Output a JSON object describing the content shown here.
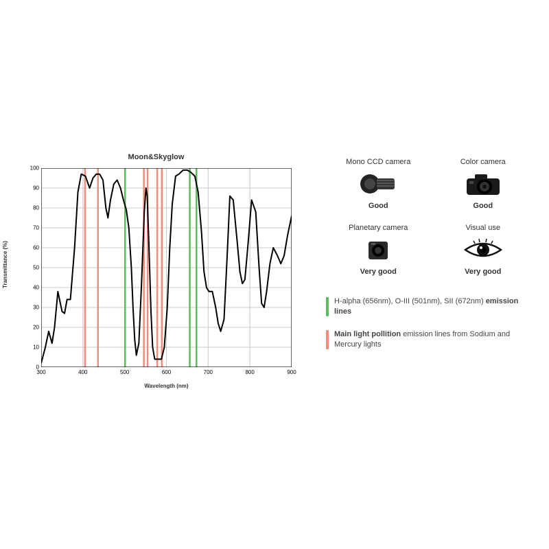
{
  "chart": {
    "type": "line",
    "title": "Moon&Skyglow",
    "xlabel": "Wavelength (nm)",
    "ylabel": "Transmittance (%)",
    "xlim": [
      300,
      900
    ],
    "ylim": [
      0,
      100
    ],
    "xticks": [
      300,
      400,
      500,
      600,
      700,
      800,
      900
    ],
    "yticks": [
      0,
      10,
      20,
      30,
      40,
      50,
      60,
      70,
      80,
      90,
      100
    ],
    "grid_color": "#c8c8c8",
    "axis_color": "#000000",
    "background_color": "#ffffff",
    "line_color": "#000000",
    "line_width": 2,
    "font_size_tick": 8,
    "font_size_label": 8,
    "font_size_title": 11,
    "green_line_color": "#5bbd5b",
    "red_line_color": "#f28d7a",
    "vline_width": 2.5,
    "green_lines_nm": [
      501,
      656,
      672
    ],
    "red_lines_nm": [
      405,
      436,
      546,
      555,
      578,
      589
    ],
    "curve": [
      [
        300,
        2
      ],
      [
        310,
        10
      ],
      [
        318,
        18
      ],
      [
        326,
        12
      ],
      [
        332,
        20
      ],
      [
        340,
        38
      ],
      [
        350,
        28
      ],
      [
        356,
        27
      ],
      [
        362,
        34
      ],
      [
        370,
        34
      ],
      [
        380,
        60
      ],
      [
        388,
        88
      ],
      [
        396,
        97
      ],
      [
        406,
        96
      ],
      [
        416,
        90
      ],
      [
        424,
        95
      ],
      [
        432,
        97
      ],
      [
        440,
        97
      ],
      [
        448,
        94
      ],
      [
        455,
        80
      ],
      [
        460,
        75
      ],
      [
        466,
        84
      ],
      [
        474,
        92
      ],
      [
        482,
        94
      ],
      [
        490,
        90
      ],
      [
        497,
        84
      ],
      [
        504,
        79
      ],
      [
        510,
        70
      ],
      [
        516,
        50
      ],
      [
        520,
        30
      ],
      [
        524,
        14
      ],
      [
        528,
        6
      ],
      [
        534,
        12
      ],
      [
        540,
        40
      ],
      [
        547,
        78
      ],
      [
        551,
        90
      ],
      [
        554,
        86
      ],
      [
        558,
        62
      ],
      [
        563,
        28
      ],
      [
        567,
        10
      ],
      [
        572,
        4
      ],
      [
        580,
        4
      ],
      [
        588,
        4
      ],
      [
        595,
        10
      ],
      [
        602,
        30
      ],
      [
        608,
        60
      ],
      [
        614,
        82
      ],
      [
        622,
        96
      ],
      [
        630,
        97
      ],
      [
        640,
        99
      ],
      [
        650,
        99
      ],
      [
        658,
        98
      ],
      [
        668,
        96
      ],
      [
        676,
        88
      ],
      [
        684,
        68
      ],
      [
        690,
        48
      ],
      [
        696,
        40
      ],
      [
        702,
        38
      ],
      [
        710,
        38
      ],
      [
        718,
        30
      ],
      [
        724,
        22
      ],
      [
        730,
        18
      ],
      [
        738,
        24
      ],
      [
        746,
        58
      ],
      [
        752,
        86
      ],
      [
        760,
        84
      ],
      [
        770,
        62
      ],
      [
        776,
        48
      ],
      [
        782,
        42
      ],
      [
        788,
        44
      ],
      [
        796,
        63
      ],
      [
        804,
        84
      ],
      [
        814,
        78
      ],
      [
        822,
        50
      ],
      [
        828,
        32
      ],
      [
        834,
        30
      ],
      [
        840,
        38
      ],
      [
        848,
        52
      ],
      [
        856,
        60
      ],
      [
        866,
        56
      ],
      [
        874,
        52
      ],
      [
        882,
        56
      ],
      [
        890,
        66
      ],
      [
        900,
        76
      ]
    ]
  },
  "right": {
    "cards": [
      {
        "top": "Mono CCD camera",
        "bottom": "Good",
        "icon": "ccd"
      },
      {
        "top": "Color camera",
        "bottom": "Good",
        "icon": "dslr"
      },
      {
        "top": "Planetary camera",
        "bottom": "Very good",
        "icon": "cube"
      },
      {
        "top": "Visual use",
        "bottom": "Very good",
        "icon": "eye"
      }
    ],
    "legend_green": {
      "color": "#5bbd5b",
      "text_plain_a": "H-alpha (656nm), O-III (501nm), SII (672nm) ",
      "text_bold": "emission lines"
    },
    "legend_red": {
      "color": "#f28d7a",
      "text_bold": "Main light pollition ",
      "text_plain": "emission lines from Sodium and Mercury lights"
    }
  }
}
